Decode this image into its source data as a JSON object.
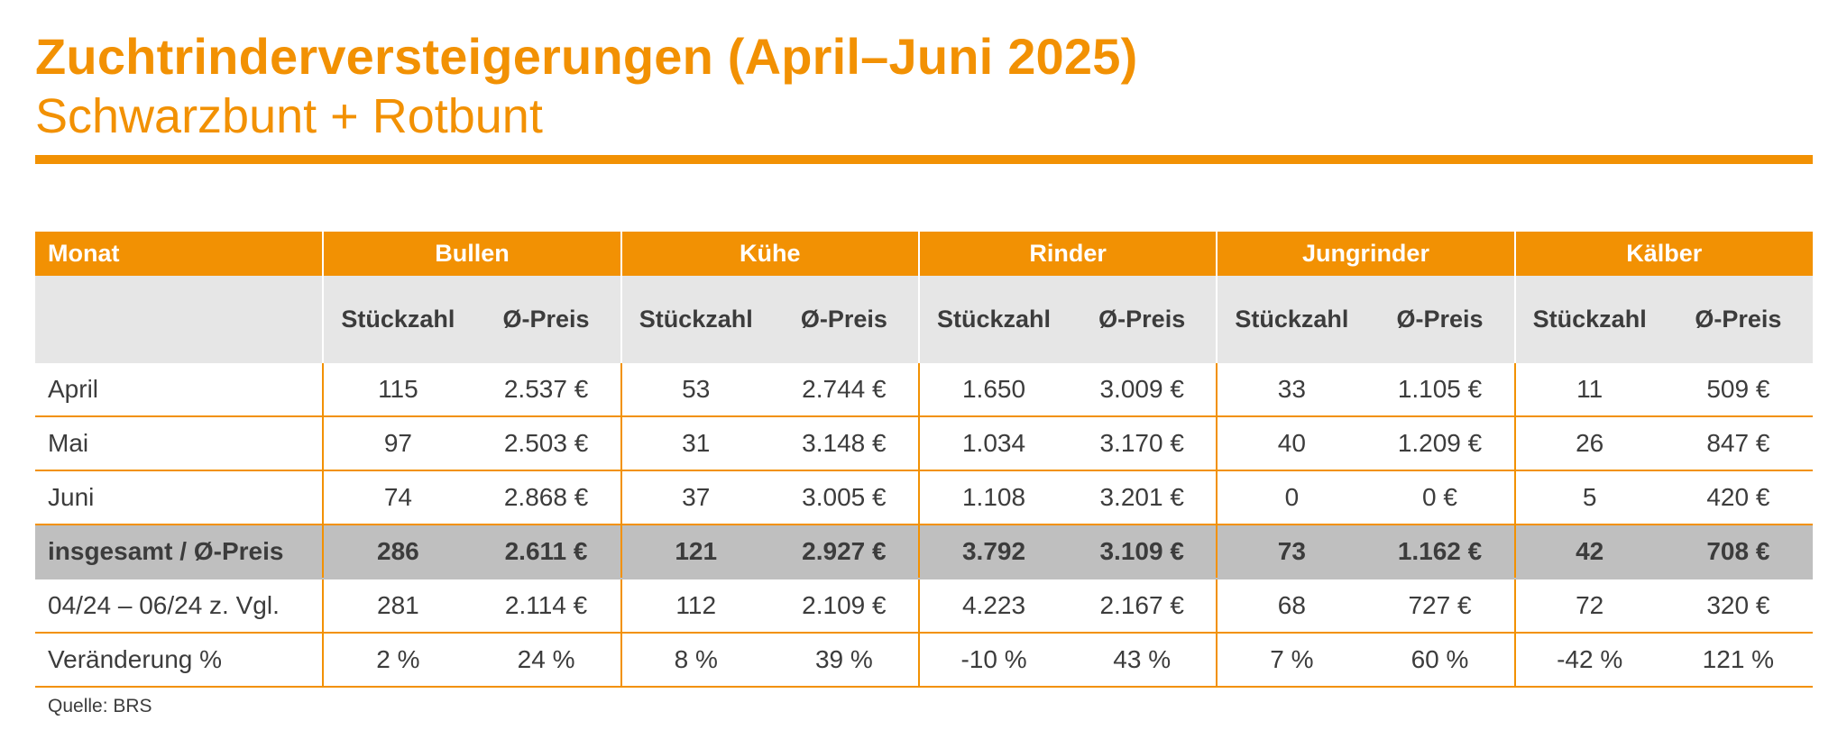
{
  "title": "Zuchtrinderversteigerungen (April–Juni 2025)",
  "subtitle": "Schwarzbunt + Rotbunt",
  "table": {
    "month_header": "Monat",
    "groups": [
      "Bullen",
      "Kühe",
      "Rinder",
      "Jungrinder",
      "Kälber"
    ],
    "sub_headers": {
      "count": "Stückzahl",
      "price": "Ø-Preis"
    },
    "rows": [
      {
        "label": "April",
        "cells": [
          "115",
          "2.537 €",
          "53",
          "2.744 €",
          "1.650",
          "3.009 €",
          "33",
          "1.105 €",
          "11",
          "509 €"
        ]
      },
      {
        "label": "Mai",
        "cells": [
          "97",
          "2.503 €",
          "31",
          "3.148 €",
          "1.034",
          "3.170 €",
          "40",
          "1.209 €",
          "26",
          "847 €"
        ]
      },
      {
        "label": "Juni",
        "cells": [
          "74",
          "2.868 €",
          "37",
          "3.005 €",
          "1.108",
          "3.201 €",
          "0",
          "0 €",
          "5",
          "420 €"
        ]
      },
      {
        "label": "insgesamt / Ø-Preis",
        "cells": [
          "286",
          "2.611 €",
          "121",
          "2.927 €",
          "3.792",
          "3.109 €",
          "73",
          "1.162 €",
          "42",
          "708 €"
        ]
      },
      {
        "label": "04/24 – 06/24  z. Vgl.",
        "cells": [
          "281",
          "2.114 €",
          "112",
          "2.109 €",
          "4.223",
          "2.167 €",
          "68",
          "727 €",
          "72",
          "320 €"
        ]
      },
      {
        "label": "Veränderung %",
        "cells": [
          "2 %",
          "24 %",
          "8 %",
          "39 %",
          "-10 %",
          "43 %",
          "7 %",
          "60 %",
          "-42 %",
          "121 %"
        ]
      }
    ]
  },
  "source": "Quelle: BRS",
  "colors": {
    "accent": "#f29103",
    "subheader_bg": "#e6e6e6",
    "total_bg": "#bfbfbf",
    "text": "#3c3c3c"
  }
}
